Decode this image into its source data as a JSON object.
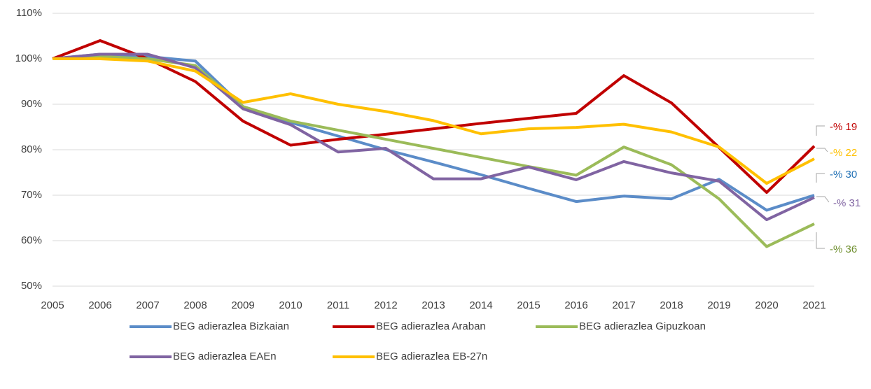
{
  "chart_data": {
    "type": "line",
    "x": [
      2005,
      2006,
      2007,
      2008,
      2009,
      2010,
      2011,
      2012,
      2013,
      2014,
      2015,
      2016,
      2017,
      2018,
      2019,
      2020,
      2021
    ],
    "xlim": [
      2005,
      2021
    ],
    "ylim": [
      50,
      110
    ],
    "yticks": [
      {
        "value": 50,
        "label": "50%"
      },
      {
        "value": 60,
        "label": "60%"
      },
      {
        "value": 70,
        "label": "70%"
      },
      {
        "value": 80,
        "label": "80%"
      },
      {
        "value": 90,
        "label": "90%"
      },
      {
        "value": 100,
        "label": "100%"
      },
      {
        "value": 110,
        "label": "110%"
      }
    ],
    "grid": true,
    "legend": "bottom",
    "series": [
      {
        "name": "BEG adierazlea Bizkaian",
        "color": "#5b8cc8",
        "values": [
          100,
          101,
          100.5,
          99.5,
          89.5,
          86,
          83,
          80,
          77.3,
          74.5,
          71.5,
          68.6,
          69.8,
          69.2,
          73.5,
          66.7,
          70
        ]
      },
      {
        "name": "BEG adierazlea Araban",
        "color": "#c00000",
        "values": [
          100,
          104,
          100,
          95,
          86.3,
          81,
          82.3,
          83.4,
          84.6,
          85.8,
          86.9,
          88,
          96.3,
          90.3,
          80.5,
          70.6,
          80.8
        ]
      },
      {
        "name": "BEG adierazlea Gipuzkoan",
        "color": "#9bbb59",
        "values": [
          100,
          100.5,
          100,
          98.5,
          89.5,
          86.3,
          84.3,
          82.3,
          80.3,
          78.3,
          76.3,
          74.4,
          80.6,
          76.7,
          69.2,
          58.7,
          63.7
        ]
      },
      {
        "name": "BEG adierazlea EAEn",
        "color": "#8064a2",
        "values": [
          100,
          101,
          101,
          98,
          89,
          85.5,
          79.5,
          80.3,
          73.6,
          73.6,
          76.2,
          73.4,
          77.4,
          74.9,
          73.1,
          64.6,
          69.5
        ]
      },
      {
        "name": "BEG adierazlea EB-27n",
        "color": "#ffc000",
        "values": [
          100,
          100,
          99.5,
          97.3,
          90.4,
          92.3,
          90,
          88.4,
          86.4,
          83.5,
          84.6,
          84.9,
          85.6,
          83.9,
          80.6,
          72.6,
          78
        ]
      }
    ],
    "annotations": [
      {
        "text": "-% 19",
        "color": "#c00000"
      },
      {
        "text": "-% 22",
        "color": "#ffc000"
      },
      {
        "text": "-% 30",
        "color": "#1f6fb4"
      },
      {
        "text": "-% 31",
        "color": "#8064a2"
      },
      {
        "text": "-% 36",
        "color": "#6f8f2f"
      }
    ]
  }
}
